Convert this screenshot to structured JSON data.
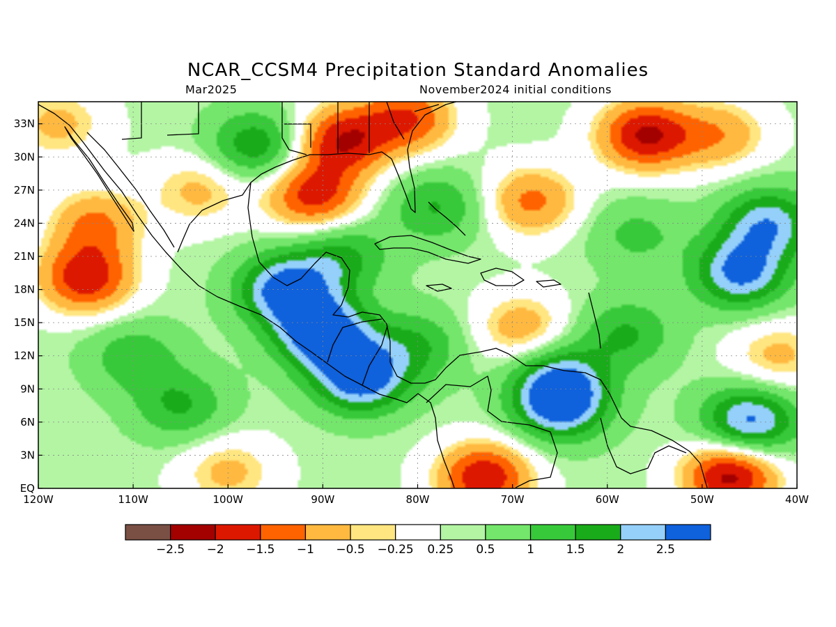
{
  "title": "NCAR_CCSM4 Precipitation Standard Anomalies",
  "subtitle_left": "Mar2025",
  "subtitle_right": "November2024 initial conditions",
  "map": {
    "lon_min": -120,
    "lon_max": -40,
    "lat_min": 0,
    "lat_max": 35,
    "lon_ticks": [
      {
        "value": -120,
        "label": "120W"
      },
      {
        "value": -110,
        "label": "110W"
      },
      {
        "value": -100,
        "label": "100W"
      },
      {
        "value": -90,
        "label": "90W"
      },
      {
        "value": -80,
        "label": "80W"
      },
      {
        "value": -70,
        "label": "70W"
      },
      {
        "value": -60,
        "label": "60W"
      },
      {
        "value": -50,
        "label": "50W"
      },
      {
        "value": -40,
        "label": "40W"
      }
    ],
    "lat_ticks": [
      {
        "value": 0,
        "label": "EQ"
      },
      {
        "value": 3,
        "label": "3N"
      },
      {
        "value": 6,
        "label": "6N"
      },
      {
        "value": 9,
        "label": "9N"
      },
      {
        "value": 12,
        "label": "12N"
      },
      {
        "value": 15,
        "label": "15N"
      },
      {
        "value": 18,
        "label": "18N"
      },
      {
        "value": 21,
        "label": "21N"
      },
      {
        "value": 24,
        "label": "24N"
      },
      {
        "value": 27,
        "label": "27N"
      },
      {
        "value": 30,
        "label": "30N"
      },
      {
        "value": 33,
        "label": "33N"
      }
    ],
    "grid": true,
    "anomaly_centers": [
      {
        "lon": -90,
        "lat": 14,
        "value": 2.8
      },
      {
        "lon": -86,
        "lat": 10,
        "value": 2.6
      },
      {
        "lon": -94,
        "lat": 18,
        "value": 2.5
      },
      {
        "lon": -65,
        "lat": 7.5,
        "value": 2.3
      },
      {
        "lon": -65,
        "lat": 10,
        "value": 1.6
      },
      {
        "lon": -45,
        "lat": 6,
        "value": 2.4
      },
      {
        "lon": -46,
        "lat": 19.5,
        "value": 2.3
      },
      {
        "lon": -43,
        "lat": 24,
        "value": 2.0
      },
      {
        "lon": -105,
        "lat": 7.5,
        "value": 1.2
      },
      {
        "lon": -110,
        "lat": 12,
        "value": 1.0
      },
      {
        "lon": -80,
        "lat": 13,
        "value": 1.1
      },
      {
        "lon": -58,
        "lat": 14,
        "value": 1.2
      },
      {
        "lon": -57,
        "lat": 23,
        "value": 0.8
      },
      {
        "lon": -97,
        "lat": 31,
        "value": 1.6
      },
      {
        "lon": -88,
        "lat": 21,
        "value": 1.3
      },
      {
        "lon": -78,
        "lat": 25.5,
        "value": 1.2
      },
      {
        "lon": -115,
        "lat": 19,
        "value": -2.2
      },
      {
        "lon": -114,
        "lat": 24,
        "value": -1.4
      },
      {
        "lon": -103,
        "lat": 27,
        "value": -1.0
      },
      {
        "lon": -91,
        "lat": 26.5,
        "value": -2.1
      },
      {
        "lon": -88,
        "lat": 31.5,
        "value": -2.2
      },
      {
        "lon": -81,
        "lat": 33.5,
        "value": -1.8
      },
      {
        "lon": -68,
        "lat": 26,
        "value": -1.5
      },
      {
        "lon": -56,
        "lat": 32,
        "value": -2.4
      },
      {
        "lon": -48,
        "lat": 32,
        "value": -1.2
      },
      {
        "lon": -69,
        "lat": 14.5,
        "value": -1.2
      },
      {
        "lon": -73,
        "lat": 1,
        "value": -2.3
      },
      {
        "lon": -47,
        "lat": 1.2,
        "value": -2.6
      },
      {
        "lon": -100,
        "lat": 1.5,
        "value": -1.0
      },
      {
        "lon": -118,
        "lat": 33,
        "value": -1.0
      },
      {
        "lon": -42,
        "lat": 12,
        "value": -1.0
      }
    ]
  },
  "colorbar": {
    "colors": [
      "#7a5044",
      "#a30000",
      "#dd1800",
      "#ff6300",
      "#ffb940",
      "#ffe680",
      "#ffffff",
      "#b3f5a3",
      "#73e66b",
      "#38c93a",
      "#1aab1a",
      "#94d0fa",
      "#0f61dc"
    ],
    "labels": [
      "-2.5",
      "-2",
      "-1.5",
      "-1",
      "-0.5",
      "-0.25",
      "0.25",
      "0.5",
      "1",
      "1.5",
      "2",
      "2.5"
    ]
  }
}
